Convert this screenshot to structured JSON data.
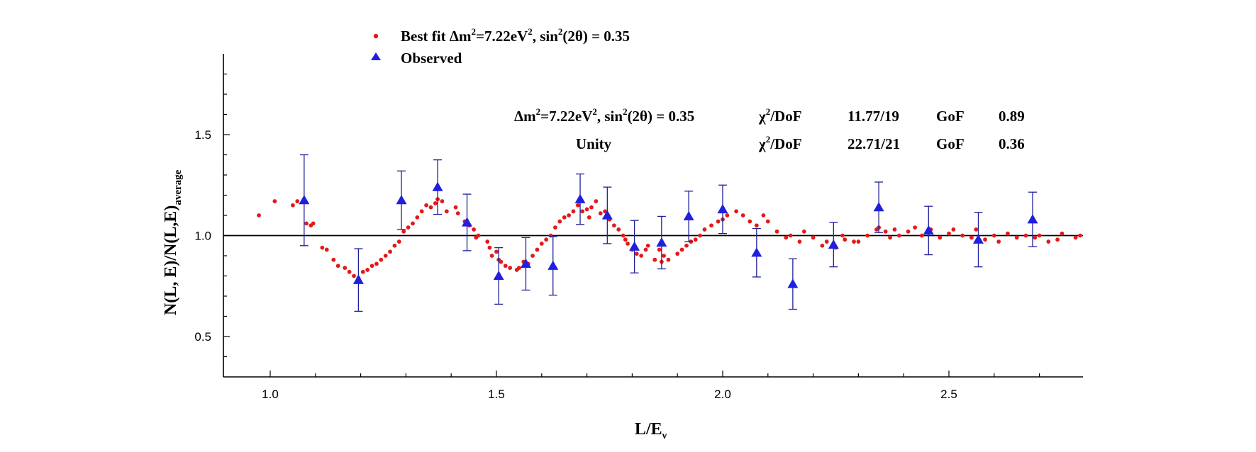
{
  "chart_data": {
    "type": "scatter",
    "xlabel": "L/E",
    "xlabel_sub": "ν",
    "ylabel": "N(L, E)/N(L,E)",
    "ylabel_sub": "average",
    "xlim": [
      0.9,
      2.8
    ],
    "ylim": [
      0.3,
      1.9
    ],
    "xticks": [
      1.0,
      1.5,
      2.0,
      2.5
    ],
    "xtick_labels": [
      "1.0",
      "1.5",
      "2.0",
      "2.5"
    ],
    "yticks": [
      0.5,
      1.0,
      1.5
    ],
    "ytick_labels": [
      "0.5",
      "1.0",
      "1.5"
    ],
    "grid": false,
    "reference_line_y": 1.0,
    "legend": {
      "placement": "top-left",
      "best_fit_label": "Best fit Δm²=7.22eV², sin²(2θ) = 0.35",
      "best_fit_parts": [
        "Best fit Δm",
        "2",
        "=7.22eV",
        "2",
        ", sin",
        "2",
        "(2θ) = 0.35"
      ],
      "observed_label": "Observed"
    },
    "annotations": {
      "row1": {
        "model_parts": [
          "Δm",
          "2",
          "=7.22eV",
          "2",
          ", sin",
          "2",
          "(2θ) = 0.35"
        ],
        "chi_parts": [
          "χ",
          "2",
          "/DoF"
        ],
        "chi_value": "11.77/19",
        "gof_label": "GoF",
        "gof_value": "0.89"
      },
      "row2": {
        "model": "Unity",
        "chi_parts": [
          "χ",
          "2",
          "/DoF"
        ],
        "chi_value": "22.71/21",
        "gof_label": "GoF",
        "gof_value": "0.36"
      }
    },
    "series": [
      {
        "name": "Best fit Δm²=7.22eV², sin²(2θ) = 0.35",
        "marker": "circle",
        "color": "#e11a1a",
        "x": [
          0.975,
          1.01,
          1.05,
          1.06,
          1.08,
          1.09,
          1.095,
          1.115,
          1.125,
          1.14,
          1.15,
          1.165,
          1.175,
          1.185,
          1.195,
          1.205,
          1.215,
          1.225,
          1.235,
          1.245,
          1.255,
          1.265,
          1.275,
          1.285,
          1.295,
          1.305,
          1.315,
          1.325,
          1.335,
          1.345,
          1.355,
          1.365,
          1.37,
          1.38,
          1.39,
          1.41,
          1.415,
          1.43,
          1.44,
          1.45,
          1.455,
          1.46,
          1.48,
          1.485,
          1.49,
          1.5,
          1.505,
          1.51,
          1.52,
          1.53,
          1.545,
          1.55,
          1.56,
          1.57,
          1.58,
          1.59,
          1.6,
          1.61,
          1.62,
          1.63,
          1.64,
          1.65,
          1.66,
          1.67,
          1.68,
          1.69,
          1.7,
          1.705,
          1.71,
          1.72,
          1.73,
          1.74,
          1.75,
          1.76,
          1.77,
          1.78,
          1.785,
          1.79,
          1.8,
          1.81,
          1.82,
          1.83,
          1.835,
          1.85,
          1.86,
          1.865,
          1.87,
          1.88,
          1.9,
          1.91,
          1.92,
          1.93,
          1.94,
          1.95,
          1.96,
          1.975,
          1.99,
          2.0,
          2.01,
          2.03,
          2.045,
          2.06,
          2.075,
          2.09,
          2.1,
          2.12,
          2.14,
          2.15,
          2.17,
          2.18,
          2.2,
          2.22,
          2.23,
          2.25,
          2.265,
          2.27,
          2.29,
          2.3,
          2.32,
          2.34,
          2.345,
          2.36,
          2.37,
          2.38,
          2.39,
          2.41,
          2.425,
          2.44,
          2.46,
          2.48,
          2.5,
          2.51,
          2.53,
          2.55,
          2.56,
          2.58,
          2.6,
          2.61,
          2.63,
          2.65,
          2.67,
          2.69,
          2.7,
          2.72,
          2.74,
          2.75,
          2.78,
          2.79
        ],
        "y": [
          1.1,
          1.17,
          1.15,
          1.17,
          1.06,
          1.05,
          1.06,
          0.94,
          0.93,
          0.88,
          0.85,
          0.84,
          0.82,
          0.8,
          0.79,
          0.82,
          0.83,
          0.85,
          0.86,
          0.88,
          0.9,
          0.92,
          0.95,
          0.97,
          1.02,
          1.04,
          1.06,
          1.09,
          1.12,
          1.15,
          1.14,
          1.16,
          1.18,
          1.17,
          1.12,
          1.14,
          1.11,
          1.07,
          1.05,
          1.03,
          0.99,
          1.0,
          0.97,
          0.94,
          0.9,
          0.92,
          0.88,
          0.87,
          0.85,
          0.84,
          0.83,
          0.84,
          0.87,
          0.86,
          0.9,
          0.93,
          0.96,
          0.98,
          1.0,
          1.04,
          1.07,
          1.09,
          1.1,
          1.12,
          1.15,
          1.12,
          1.13,
          1.09,
          1.14,
          1.17,
          1.11,
          1.12,
          1.08,
          1.05,
          1.03,
          1.0,
          0.98,
          0.96,
          0.93,
          0.91,
          0.9,
          0.93,
          0.95,
          0.88,
          0.93,
          0.87,
          0.9,
          0.88,
          0.91,
          0.93,
          0.95,
          0.97,
          0.98,
          1.0,
          1.03,
          1.05,
          1.07,
          1.08,
          1.1,
          1.12,
          1.1,
          1.07,
          1.05,
          1.1,
          1.07,
          1.02,
          0.99,
          1.0,
          0.97,
          1.02,
          0.99,
          0.95,
          0.97,
          0.94,
          1.0,
          0.98,
          0.97,
          0.97,
          1.0,
          1.03,
          1.04,
          1.02,
          0.99,
          1.03,
          1.0,
          1.02,
          1.04,
          1.0,
          1.03,
          0.99,
          1.01,
          1.03,
          1.0,
          0.99,
          1.03,
          0.98,
          1.0,
          0.97,
          1.01,
          0.99,
          1.0,
          0.99,
          1.0,
          0.97,
          0.98,
          1.01,
          0.99,
          1.0
        ]
      },
      {
        "name": "Observed",
        "marker": "triangle",
        "color": "#1f1fe0",
        "errorbar_color": "#1f1f9a",
        "x": [
          1.075,
          1.195,
          1.29,
          1.37,
          1.435,
          1.505,
          1.565,
          1.625,
          1.685,
          1.745,
          1.805,
          1.865,
          1.925,
          2.0,
          2.075,
          2.155,
          2.245,
          2.345,
          2.455,
          2.565,
          2.685
        ],
        "y": [
          1.175,
          0.78,
          1.175,
          1.24,
          1.065,
          0.8,
          0.86,
          0.85,
          1.18,
          1.1,
          0.945,
          0.965,
          1.095,
          1.13,
          0.915,
          0.76,
          0.955,
          1.14,
          1.025,
          0.98,
          1.08
        ],
        "err": [
          0.225,
          0.155,
          0.145,
          0.135,
          0.14,
          0.14,
          0.13,
          0.145,
          0.125,
          0.14,
          0.13,
          0.13,
          0.125,
          0.12,
          0.12,
          0.125,
          0.11,
          0.125,
          0.12,
          0.135,
          0.135
        ]
      }
    ]
  }
}
